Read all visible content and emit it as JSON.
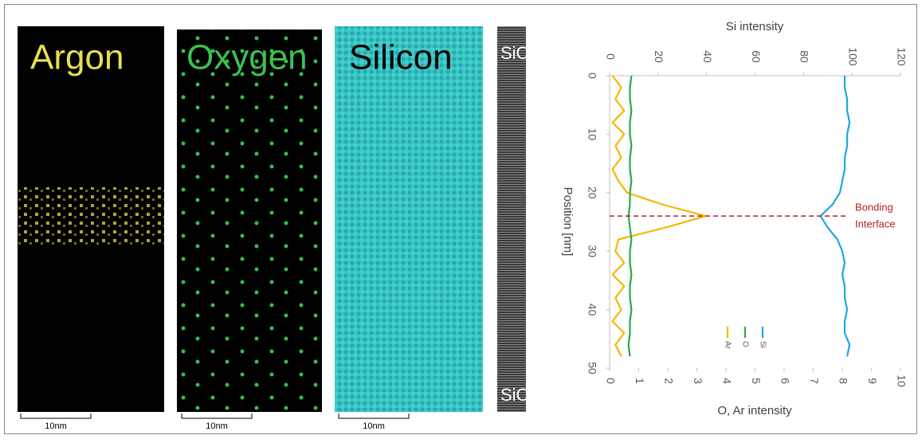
{
  "maps": [
    {
      "label": "Argon",
      "scale_bar": "10nm"
    },
    {
      "label": "Oxygen",
      "scale_bar": "10nm"
    },
    {
      "label": "Silicon",
      "scale_bar": "10nm"
    }
  ],
  "tem": {
    "top_label": "SiC",
    "bottom_label": "SiC"
  },
  "chart_data": {
    "type": "line",
    "orientation": "vertical",
    "xlabel": "Position [nm]",
    "ylabel": "O, Ar intensity",
    "y2label": "Si intensity",
    "x": [
      0,
      2,
      4,
      6,
      8,
      10,
      12,
      14,
      16,
      18,
      20,
      22,
      24,
      26,
      28,
      30,
      32,
      34,
      36,
      38,
      40,
      42,
      44,
      46,
      48
    ],
    "xlim": [
      0,
      50
    ],
    "xticks": [
      0,
      10,
      20,
      30,
      40,
      50
    ],
    "ylim": [
      0,
      10
    ],
    "yticks": [
      0,
      1,
      2,
      3,
      4,
      5,
      6,
      7,
      8,
      9,
      10
    ],
    "y2lim": [
      0,
      120
    ],
    "y2ticks": [
      0,
      20,
      40,
      60,
      80,
      100,
      120
    ],
    "series": [
      {
        "name": "Ar",
        "color": "#f5b800",
        "values": [
          0.1,
          0.4,
          0.2,
          0.5,
          0.1,
          0.5,
          0.2,
          0.4,
          0.1,
          0.3,
          0.6,
          1.8,
          3.3,
          1.9,
          0.3,
          0.2,
          0.5,
          0.1,
          0.5,
          0.2,
          0.4,
          0.1,
          0.5,
          0.2,
          0.4
        ]
      },
      {
        "name": "O",
        "color": "#2aa84a",
        "values": [
          0.75,
          0.7,
          0.7,
          0.75,
          0.7,
          0.7,
          0.75,
          0.7,
          0.7,
          0.75,
          0.7,
          0.7,
          0.65,
          0.7,
          0.75,
          0.7,
          0.7,
          0.75,
          0.7,
          0.7,
          0.75,
          0.7,
          0.7,
          0.65,
          0.7
        ]
      },
      {
        "name": "Si",
        "color": "#1ea7e1",
        "axis": "y2",
        "values": [
          97,
          97,
          98,
          98,
          99,
          98,
          98,
          97,
          97,
          96,
          95,
          92,
          87,
          90,
          94,
          96,
          97,
          96,
          97,
          97,
          98,
          97,
          97,
          99,
          98
        ]
      }
    ],
    "annotation": {
      "text": [
        "Bonding",
        "Interface"
      ],
      "position": 24,
      "color": "#b22222"
    }
  }
}
